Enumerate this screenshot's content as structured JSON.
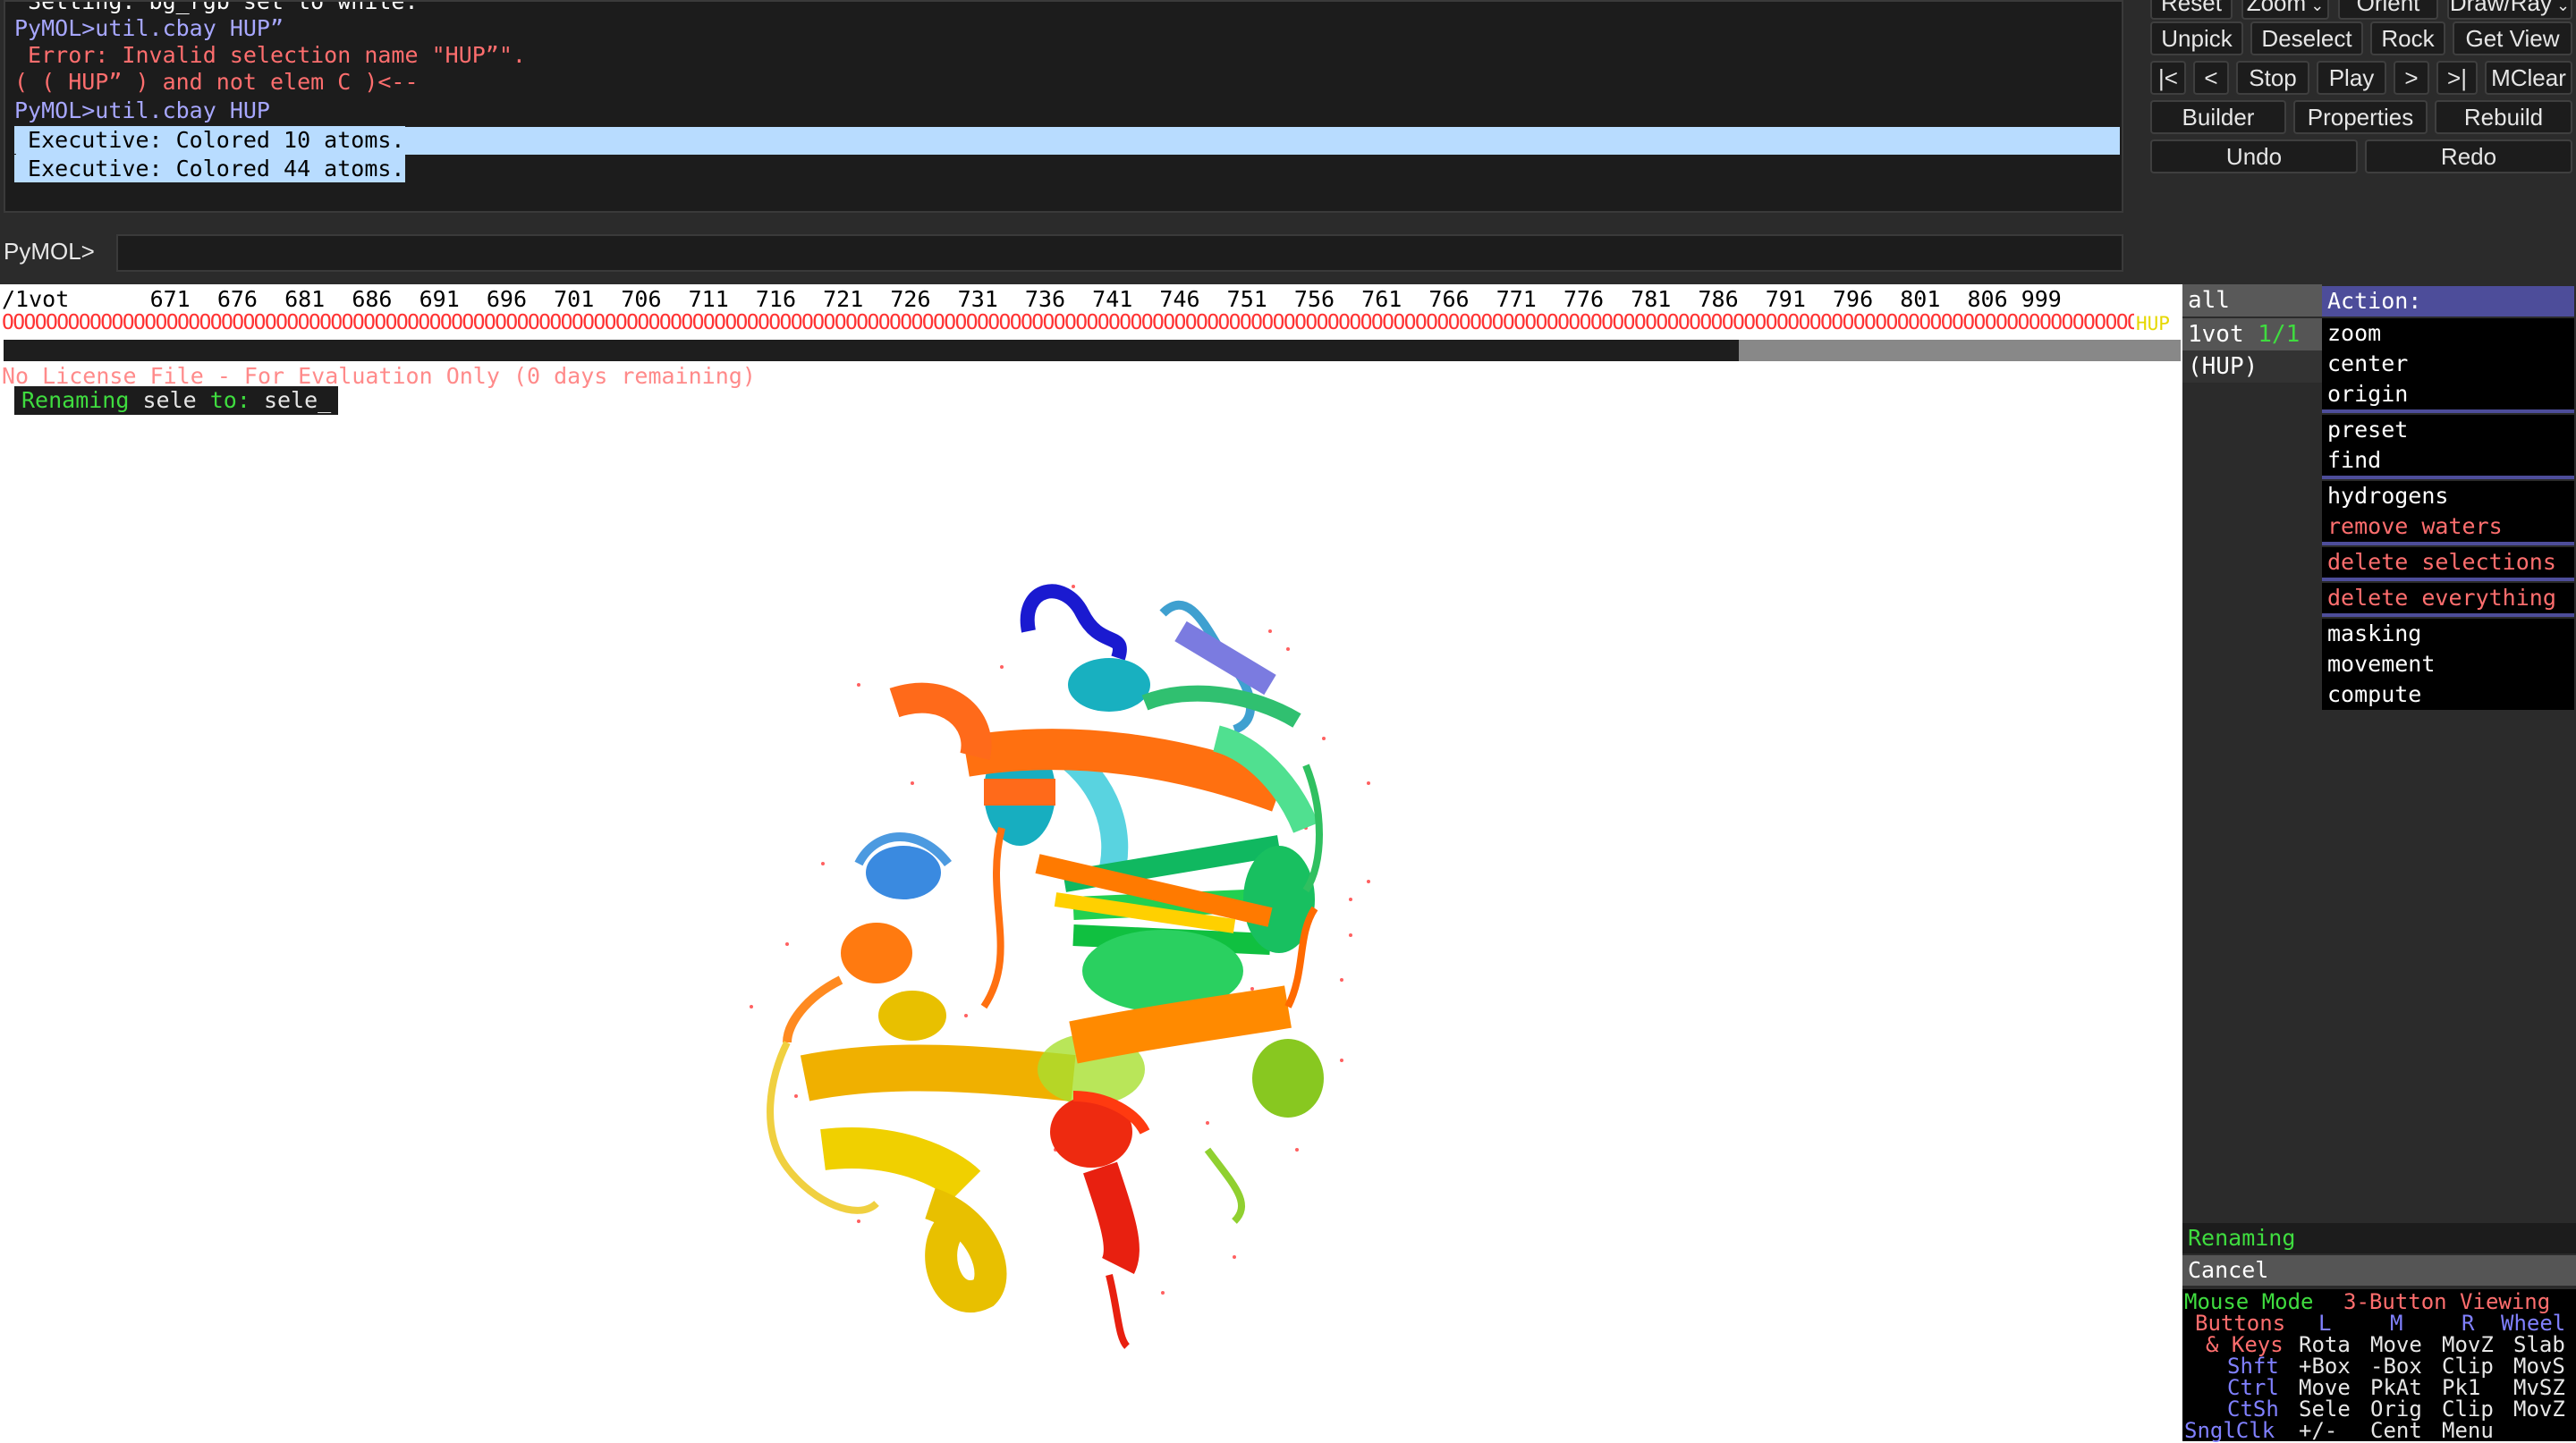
{
  "console": {
    "lines": [
      {
        "text": " Setting: bg_rgb set to white.",
        "color": "white"
      },
      {
        "text": "PyMOL>util.cbay HUP”",
        "color": "purple"
      },
      {
        "text": " Error: Invalid selection name \"HUP”\".",
        "color": "red"
      },
      {
        "text": "( ( HUP” ) and not elem C )<--",
        "color": "red"
      },
      {
        "text": "PyMOL>util.cbay HUP",
        "color": "purple"
      },
      {
        "text": " Executive: Colored 10 atoms.",
        "color": "selected"
      },
      {
        "text": " Executive: Colored 44 atoms.",
        "color": "selected"
      }
    ],
    "prompt": "PyMOL>",
    "input_value": ""
  },
  "buttons": {
    "reset": "Reset",
    "zoom": "Zoom",
    "orient": "Orient",
    "drawray": "Draw/Ray",
    "unpick": "Unpick",
    "deselect": "Deselect",
    "rock": "Rock",
    "getview": "Get View",
    "first": "|<",
    "prev": "<",
    "stop": "Stop",
    "play": "Play",
    "next": ">",
    "last": ">|",
    "mclear": "MClear",
    "builder": "Builder",
    "properties": "Properties",
    "rebuild": "Rebuild",
    "undo": "Undo",
    "redo": "Redo"
  },
  "sequence": {
    "numbers_line": "/1vot      671  676  681  686  691  696  701  706  711  716  721  726  731  736  741  746  751  756  761  766  771  776  781  786  791  796  801  806 999",
    "residues_line": "OOOOOOOOOOOOOOOOOOOOOOOOOOOOOOOOOOOOOOOOOOOOOOOOOOOOOOOOOOOOOOOOOOOOOOOOOOOOOOOOOOOOOOOOOOOOOOOOOOOOOOOOOOOOOOOOOOOOOOOOOOOOOOOOOOOOOOOOOOOOOOOOOOOOOOOOOOOOOOOOOOOOOOOOOOOOOOOOOOOOOOOOOOOOOOOOOOOOOOOOOOOOOOOOOOOOOOOOOOOOOOOOOOOOOOO",
    "ligand": "HUP",
    "scroll_position": 0.8
  },
  "viewer": {
    "license_text": "No License File - For Evaluation Only (0 days remaining)",
    "rename_word": "Renaming",
    "rename_sele": " sele ",
    "rename_to": "to:",
    "rename_new": " sele_"
  },
  "objects": {
    "all": "all",
    "obj1_name": "1vot",
    "obj1_state": "1/1",
    "sel1": "(HUP)"
  },
  "action_menu": {
    "header": "Action:",
    "groups": [
      [
        "zoom",
        "center",
        "origin"
      ],
      [
        "preset",
        "find"
      ],
      [
        "hydrogens",
        "remove waters"
      ],
      [
        "delete selections"
      ],
      [
        "delete everything"
      ],
      [
        "masking",
        "movement",
        "compute"
      ]
    ]
  },
  "status": {
    "renaming": "Renaming",
    "cancel": "Cancel"
  },
  "mouse": {
    "title_left": "Mouse Mode",
    "title_right": "3-Button Viewing",
    "row_buttons": [
      "Buttons",
      "L",
      "M",
      "R",
      "Wheel"
    ],
    "row_keys": [
      "& Keys",
      "Rota",
      "Move",
      "MovZ",
      "Slab"
    ],
    "row_shft": [
      "Shft",
      "+Box",
      "-Box",
      "Clip",
      "MovS"
    ],
    "row_ctrl": [
      "Ctrl",
      "Move",
      "PkAt",
      "Pk1",
      "MvSZ"
    ],
    "row_ctsh": [
      "CtSh",
      "Sele",
      "Orig",
      "Clip",
      "MovZ"
    ],
    "row_sngl": [
      "SnglClk",
      "+/-",
      "Cent",
      "Menu",
      ""
    ]
  },
  "colors": {
    "panel_bg": "#2b2b2b",
    "console_bg": "#1c1c1c",
    "menu_header": "#4d4d9a",
    "error_red": "#ff6e6e",
    "prompt_purple": "#a7a7ff",
    "green": "#3fdc3f"
  }
}
